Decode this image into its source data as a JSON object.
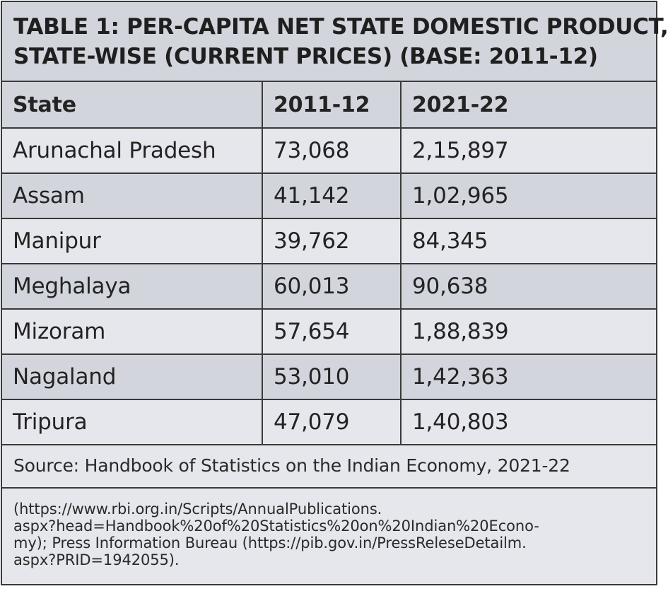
{
  "title": {
    "line1": "TABLE 1: PER-CAPITA NET STATE DOMESTIC PRODUCT,",
    "line2": "STATE-WISE (CURRENT PRICES) (BASE: 2011-12)"
  },
  "table": {
    "headers": [
      "State",
      "2011-12",
      "2021-22"
    ],
    "rows": [
      [
        "Arunachal Pradesh",
        "73,068",
        "2,15,897"
      ],
      [
        "Assam",
        "41,142",
        "1,02,965"
      ],
      [
        "Manipur",
        "39,762",
        "84,345"
      ],
      [
        "Meghalaya",
        "60,013",
        "90,638"
      ],
      [
        "Mizoram",
        "57,654",
        "1,88,839"
      ],
      [
        "Nagaland",
        "53,010",
        "1,42,363"
      ],
      [
        "Tripura",
        "47,079",
        "1,40,803"
      ]
    ]
  },
  "source": "Source: Handbook of Statistics on the Indian Economy, 2021-22",
  "note_lines": [
    "(https://www.rbi.org.in/Scripts/AnnualPublications.",
    "aspx?head=Handbook%20of%20Statistics%20on%20Indian%20Econo-",
    "my); Press Information Bureau (https://pib.gov.in/PressReleseDetailm.",
    "aspx?PRID=1942055)."
  ],
  "colors": {
    "header_bg": "#d3d5dd",
    "row_bg_light": "#e6e6ed",
    "row_bg_dark": "#d3d5dd",
    "border": "#3a3a3a"
  }
}
